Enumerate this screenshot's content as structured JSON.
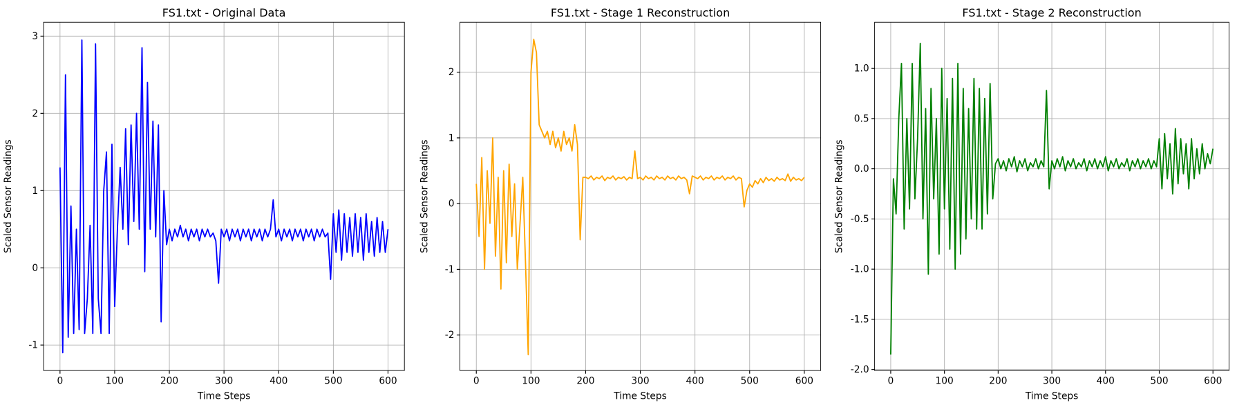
{
  "chart_data": [
    {
      "type": "line",
      "title": "FS1.txt - Original Data",
      "xlabel": "Time Steps",
      "ylabel": "Scaled Sensor Readings",
      "color": "#0000ff",
      "grid": true,
      "xlim": [
        -30,
        630
      ],
      "ylim": [
        -1.33,
        3.18
      ],
      "xticks": [
        0,
        100,
        200,
        300,
        400,
        500,
        600
      ],
      "yticks": [
        -1,
        0,
        1,
        2,
        3
      ],
      "x": [
        0,
        5,
        10,
        15,
        20,
        25,
        30,
        35,
        40,
        45,
        50,
        55,
        60,
        65,
        70,
        75,
        80,
        85,
        90,
        95,
        100,
        105,
        110,
        115,
        120,
        125,
        130,
        135,
        140,
        145,
        150,
        155,
        160,
        165,
        170,
        175,
        180,
        185,
        190,
        195,
        200,
        205,
        210,
        215,
        220,
        225,
        230,
        235,
        240,
        245,
        250,
        255,
        260,
        265,
        270,
        275,
        280,
        285,
        290,
        295,
        300,
        305,
        310,
        315,
        320,
        325,
        330,
        335,
        340,
        345,
        350,
        355,
        360,
        365,
        370,
        375,
        380,
        385,
        390,
        395,
        400,
        405,
        410,
        415,
        420,
        425,
        430,
        435,
        440,
        445,
        450,
        455,
        460,
        465,
        470,
        475,
        480,
        485,
        490,
        495,
        500,
        505,
        510,
        515,
        520,
        525,
        530,
        535,
        540,
        545,
        550,
        555,
        560,
        565,
        570,
        575,
        580,
        585,
        590,
        595,
        600
      ],
      "values": [
        1.3,
        -1.1,
        2.5,
        -0.9,
        0.8,
        -0.85,
        0.5,
        -0.8,
        2.95,
        -0.85,
        -0.4,
        0.55,
        -0.85,
        2.9,
        -0.4,
        -0.85,
        1.0,
        1.5,
        -0.85,
        1.6,
        -0.5,
        0.5,
        1.3,
        0.5,
        1.8,
        0.3,
        1.85,
        0.6,
        2.0,
        0.5,
        2.85,
        -0.05,
        2.4,
        0.5,
        1.9,
        0.4,
        1.85,
        -0.7,
        1.0,
        0.3,
        0.5,
        0.35,
        0.5,
        0.4,
        0.55,
        0.4,
        0.5,
        0.35,
        0.5,
        0.4,
        0.5,
        0.35,
        0.5,
        0.4,
        0.5,
        0.4,
        0.45,
        0.35,
        -0.2,
        0.5,
        0.4,
        0.5,
        0.35,
        0.5,
        0.4,
        0.5,
        0.35,
        0.5,
        0.4,
        0.5,
        0.35,
        0.5,
        0.4,
        0.5,
        0.35,
        0.5,
        0.4,
        0.5,
        0.88,
        0.4,
        0.5,
        0.35,
        0.5,
        0.4,
        0.5,
        0.35,
        0.5,
        0.4,
        0.5,
        0.35,
        0.5,
        0.4,
        0.5,
        0.35,
        0.5,
        0.4,
        0.5,
        0.4,
        0.45,
        -0.15,
        0.7,
        0.2,
        0.75,
        0.1,
        0.7,
        0.2,
        0.65,
        0.15,
        0.7,
        0.2,
        0.65,
        0.1,
        0.7,
        0.2,
        0.6,
        0.15,
        0.65,
        0.2,
        0.6,
        0.2,
        0.5
      ]
    },
    {
      "type": "line",
      "title": "FS1.txt - Stage 1 Reconstruction",
      "xlabel": "Time Steps",
      "ylabel": "Scaled Sensor Readings",
      "color": "#ffa500",
      "grid": true,
      "xlim": [
        -30,
        630
      ],
      "ylim": [
        -2.54,
        2.76
      ],
      "xticks": [
        0,
        100,
        200,
        300,
        400,
        500,
        600
      ],
      "yticks": [
        -2,
        -1,
        0,
        1,
        2
      ],
      "x": [
        0,
        5,
        10,
        15,
        20,
        25,
        30,
        35,
        40,
        45,
        50,
        55,
        60,
        65,
        70,
        75,
        80,
        85,
        90,
        95,
        100,
        105,
        110,
        115,
        120,
        125,
        130,
        135,
        140,
        145,
        150,
        155,
        160,
        165,
        170,
        175,
        180,
        185,
        190,
        195,
        200,
        205,
        210,
        215,
        220,
        225,
        230,
        235,
        240,
        245,
        250,
        255,
        260,
        265,
        270,
        275,
        280,
        285,
        290,
        295,
        300,
        305,
        310,
        315,
        320,
        325,
        330,
        335,
        340,
        345,
        350,
        355,
        360,
        365,
        370,
        375,
        380,
        385,
        390,
        395,
        400,
        405,
        410,
        415,
        420,
        425,
        430,
        435,
        440,
        445,
        450,
        455,
        460,
        465,
        470,
        475,
        480,
        485,
        490,
        495,
        500,
        505,
        510,
        515,
        520,
        525,
        530,
        535,
        540,
        545,
        550,
        555,
        560,
        565,
        570,
        575,
        580,
        585,
        590,
        595,
        600
      ],
      "values": [
        0.3,
        -0.5,
        0.7,
        -1.0,
        0.5,
        -0.3,
        1.0,
        -0.8,
        0.4,
        -1.3,
        0.5,
        -0.9,
        0.6,
        -0.5,
        0.3,
        -1.0,
        -0.3,
        0.4,
        -0.9,
        -2.3,
        2.0,
        2.5,
        2.3,
        1.2,
        1.1,
        1.0,
        1.1,
        0.9,
        1.1,
        0.85,
        1.0,
        0.8,
        1.1,
        0.9,
        1.0,
        0.8,
        1.2,
        0.9,
        -0.55,
        0.4,
        0.4,
        0.38,
        0.42,
        0.36,
        0.4,
        0.38,
        0.42,
        0.35,
        0.4,
        0.38,
        0.42,
        0.36,
        0.4,
        0.38,
        0.41,
        0.36,
        0.4,
        0.38,
        0.8,
        0.38,
        0.4,
        0.36,
        0.42,
        0.38,
        0.4,
        0.36,
        0.42,
        0.38,
        0.4,
        0.36,
        0.42,
        0.38,
        0.4,
        0.36,
        0.42,
        0.38,
        0.4,
        0.36,
        0.15,
        0.42,
        0.4,
        0.38,
        0.42,
        0.36,
        0.4,
        0.38,
        0.42,
        0.36,
        0.4,
        0.38,
        0.42,
        0.36,
        0.4,
        0.38,
        0.42,
        0.36,
        0.4,
        0.38,
        -0.05,
        0.2,
        0.3,
        0.25,
        0.35,
        0.3,
        0.38,
        0.32,
        0.4,
        0.35,
        0.38,
        0.34,
        0.4,
        0.36,
        0.38,
        0.35,
        0.45,
        0.34,
        0.4,
        0.36,
        0.38,
        0.35,
        0.4
      ]
    },
    {
      "type": "line",
      "title": "FS1.txt - Stage 2 Reconstruction",
      "xlabel": "Time Steps",
      "ylabel": "Scaled Sensor Readings",
      "color": "#008000",
      "grid": true,
      "xlim": [
        -30,
        630
      ],
      "ylim": [
        -2.01,
        1.46
      ],
      "xticks": [
        0,
        100,
        200,
        300,
        400,
        500,
        600
      ],
      "yticks": [
        {
          "value": -2,
          "label": "-2.0"
        },
        -1.5,
        {
          "value": -1,
          "label": "-1.0"
        },
        -0.5,
        {
          "value": 0,
          "label": "0.0"
        },
        0.5,
        {
          "value": 1,
          "label": "1.0"
        }
      ],
      "x": [
        0,
        5,
        10,
        15,
        20,
        25,
        30,
        35,
        40,
        45,
        50,
        55,
        60,
        65,
        70,
        75,
        80,
        85,
        90,
        95,
        100,
        105,
        110,
        115,
        120,
        125,
        130,
        135,
        140,
        145,
        150,
        155,
        160,
        165,
        170,
        175,
        180,
        185,
        190,
        195,
        200,
        205,
        210,
        215,
        220,
        225,
        230,
        235,
        240,
        245,
        250,
        255,
        260,
        265,
        270,
        275,
        280,
        285,
        290,
        295,
        300,
        305,
        310,
        315,
        320,
        325,
        330,
        335,
        340,
        345,
        350,
        355,
        360,
        365,
        370,
        375,
        380,
        385,
        390,
        395,
        400,
        405,
        410,
        415,
        420,
        425,
        430,
        435,
        440,
        445,
        450,
        455,
        460,
        465,
        470,
        475,
        480,
        485,
        490,
        495,
        500,
        505,
        510,
        515,
        520,
        525,
        530,
        535,
        540,
        545,
        550,
        555,
        560,
        565,
        570,
        575,
        580,
        585,
        590,
        595,
        600
      ],
      "values": [
        -1.85,
        -0.1,
        -0.45,
        0.5,
        1.05,
        -0.6,
        0.5,
        -0.4,
        1.05,
        -0.3,
        0.3,
        1.25,
        -0.5,
        0.6,
        -1.05,
        0.8,
        -0.3,
        0.5,
        -0.85,
        1.0,
        -0.4,
        0.7,
        -0.8,
        0.9,
        -1.0,
        1.05,
        -0.85,
        0.8,
        -0.7,
        0.6,
        -0.5,
        0.9,
        -0.6,
        0.8,
        -0.6,
        0.7,
        -0.45,
        0.85,
        -0.3,
        0.05,
        0.1,
        0.0,
        0.08,
        -0.02,
        0.1,
        0.02,
        0.12,
        -0.03,
        0.08,
        0.02,
        0.1,
        -0.02,
        0.06,
        0.02,
        0.1,
        0.0,
        0.08,
        0.02,
        0.78,
        -0.2,
        0.08,
        0.0,
        0.1,
        0.02,
        0.12,
        -0.02,
        0.08,
        0.02,
        0.1,
        0.0,
        0.06,
        0.02,
        0.1,
        -0.02,
        0.08,
        0.02,
        0.1,
        0.0,
        0.08,
        0.02,
        0.12,
        -0.02,
        0.08,
        0.02,
        0.1,
        0.0,
        0.06,
        0.02,
        0.1,
        -0.02,
        0.08,
        0.02,
        0.1,
        0.0,
        0.08,
        0.02,
        0.1,
        0.0,
        0.08,
        0.02,
        0.3,
        -0.2,
        0.35,
        -0.1,
        0.25,
        -0.25,
        0.4,
        -0.15,
        0.3,
        -0.05,
        0.25,
        -0.2,
        0.3,
        -0.1,
        0.2,
        -0.05,
        0.25,
        0.0,
        0.15,
        0.05,
        0.2
      ]
    }
  ]
}
